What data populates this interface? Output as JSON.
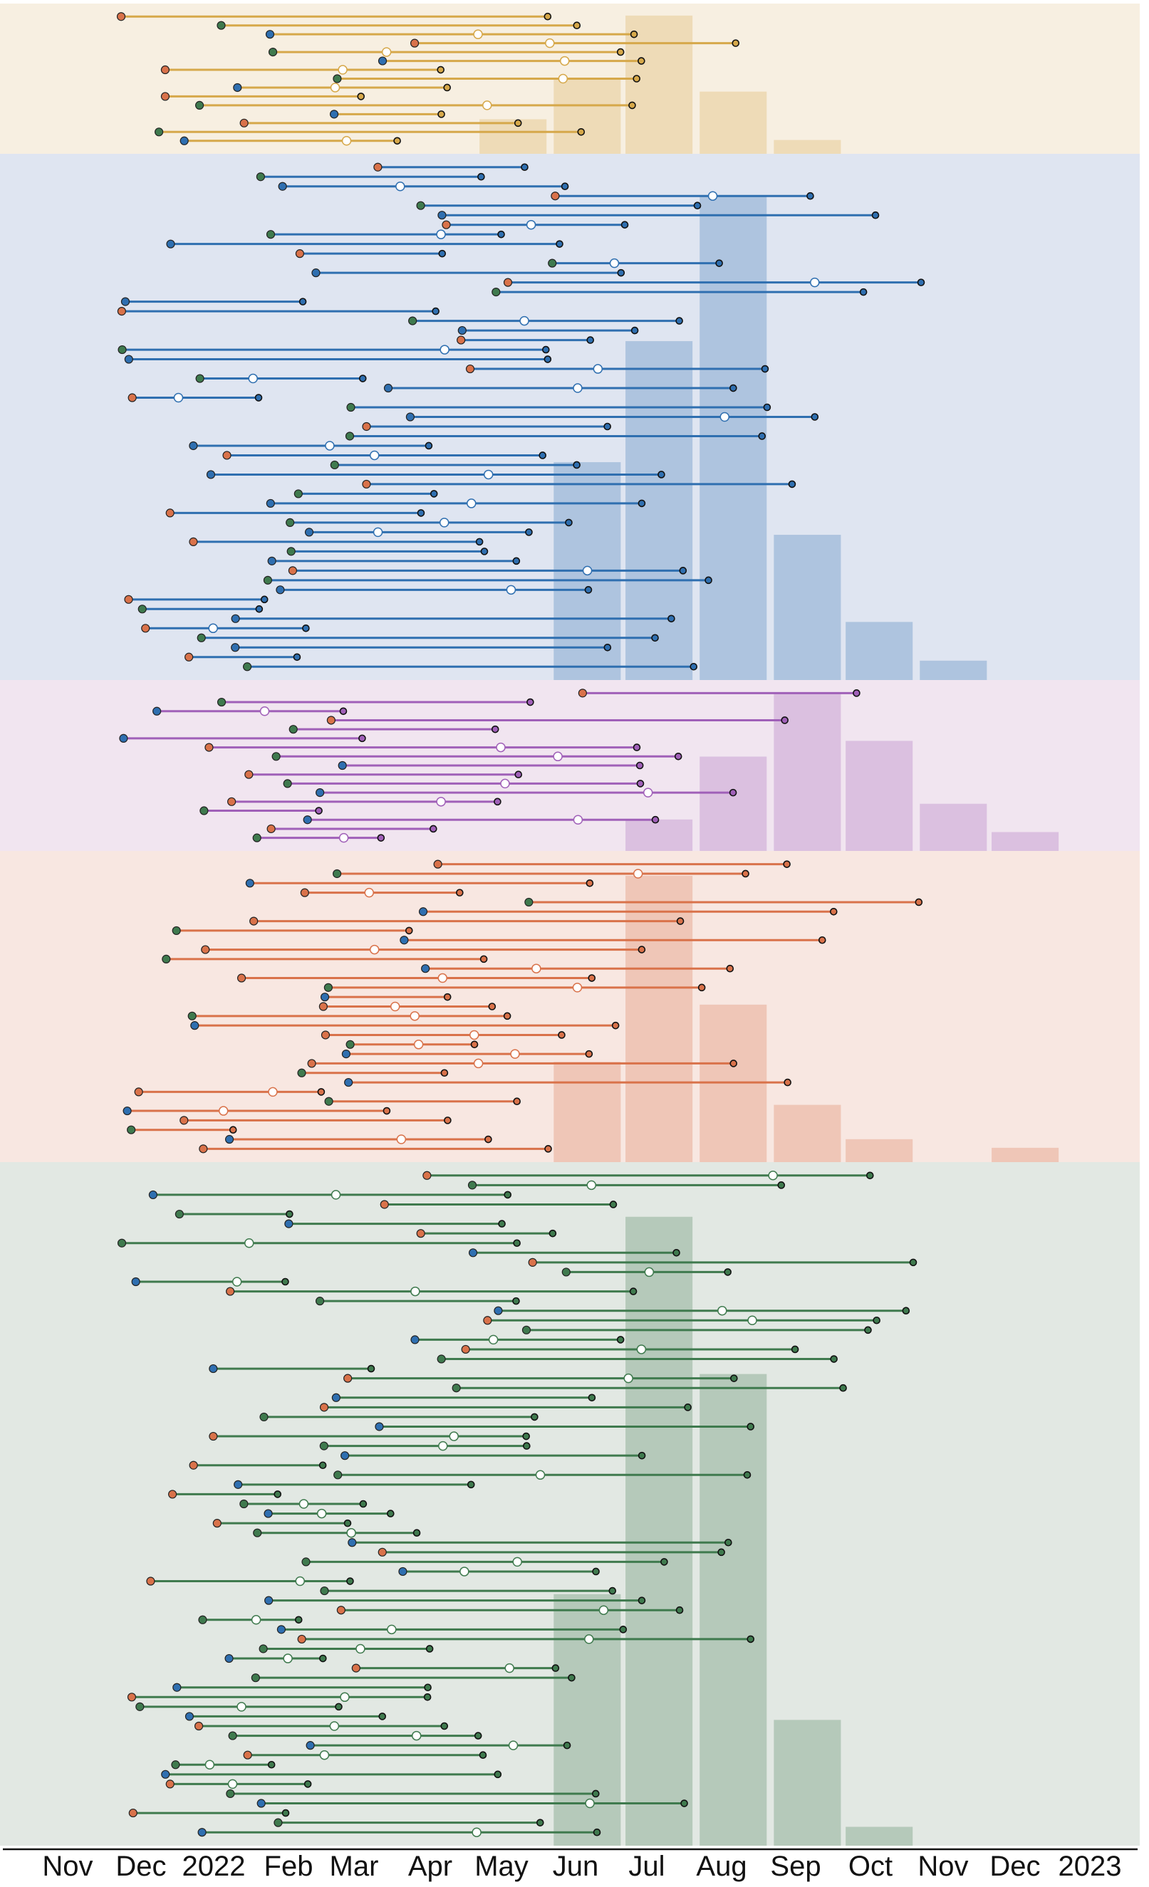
{
  "chart_data": {
    "type": "timeline-tree",
    "title": "",
    "xlabel": "",
    "ylabel": "",
    "x_ticks": [
      "Nov",
      "Dec",
      "2022",
      "Feb",
      "Mar",
      "Apr",
      "May",
      "Jun",
      "Jul",
      "Aug",
      "Sep",
      "Oct",
      "Nov",
      "Dec",
      "2023"
    ],
    "x_range": [
      "2021-10-15",
      "2023-01-31"
    ],
    "grid": false,
    "legend": "none",
    "panels": [
      {
        "color": "#d6a84a",
        "background": "#f7efe1",
        "histogram": [
          {
            "month": "2022-05",
            "height": 0.25
          },
          {
            "month": "2022-06",
            "height": 0.55
          },
          {
            "month": "2022-07",
            "height": 1.0
          },
          {
            "month": "2022-08",
            "height": 0.45
          },
          {
            "month": "2022-09",
            "height": 0.1
          }
        ]
      },
      {
        "color": "#2f6fb0",
        "background": "#dfe5f1",
        "histogram": [
          {
            "month": "2022-06",
            "height": 0.45
          },
          {
            "month": "2022-07",
            "height": 0.7
          },
          {
            "month": "2022-08",
            "height": 1.0
          },
          {
            "month": "2022-09",
            "height": 0.3
          },
          {
            "month": "2022-10",
            "height": 0.12
          },
          {
            "month": "2022-11",
            "height": 0.04
          }
        ]
      },
      {
        "color": "#a060b8",
        "background": "#f1e5f0",
        "histogram": [
          {
            "month": "2022-07",
            "height": 0.2
          },
          {
            "month": "2022-08",
            "height": 0.6
          },
          {
            "month": "2022-09",
            "height": 1.0
          },
          {
            "month": "2022-10",
            "height": 0.7
          },
          {
            "month": "2022-11",
            "height": 0.3
          },
          {
            "month": "2022-12",
            "height": 0.12
          }
        ]
      },
      {
        "color": "#d9724a",
        "background": "#f8e7e1",
        "histogram": [
          {
            "month": "2022-06",
            "height": 0.35
          },
          {
            "month": "2022-07",
            "height": 1.0
          },
          {
            "month": "2022-08",
            "height": 0.55
          },
          {
            "month": "2022-09",
            "height": 0.2
          },
          {
            "month": "2022-10",
            "height": 0.08
          },
          {
            "month": "2022-12",
            "height": 0.05
          }
        ]
      },
      {
        "color": "#3f7a4e",
        "background": "#e2e8e3",
        "histogram": [
          {
            "month": "2022-06",
            "height": 0.4
          },
          {
            "month": "2022-07",
            "height": 1.0
          },
          {
            "month": "2022-08",
            "height": 0.75
          },
          {
            "month": "2022-09",
            "height": 0.2
          },
          {
            "month": "2022-10",
            "height": 0.03
          }
        ]
      }
    ]
  }
}
